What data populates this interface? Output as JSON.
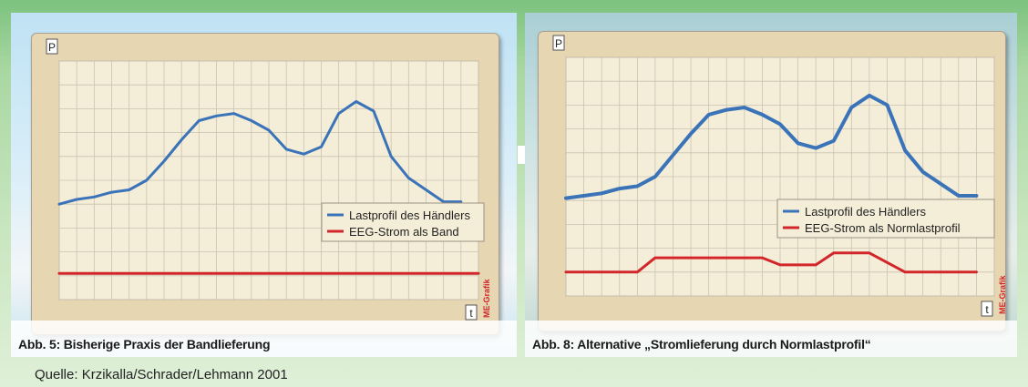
{
  "source_text": "Quelle: Krzikalla/Schrader/Lehmann 2001",
  "colors": {
    "series_blue": "#3b73b9",
    "series_red": "#d2262b",
    "plot_bg": "#f4eed8",
    "frame_bg": "#e6d7b2",
    "grid": "#c9c2b2",
    "credit": "#d2262b"
  },
  "chart_data": [
    {
      "type": "line",
      "caption": "Abb. 5: Bisherige Praxis der Bandlieferung",
      "ylabel": "P",
      "xlabel": "t",
      "credit": "ME-Grafik",
      "grid": true,
      "legend_position": "right",
      "x": [
        0,
        1,
        2,
        3,
        4,
        5,
        6,
        7,
        8,
        9,
        10,
        11,
        12,
        13,
        14,
        15,
        16,
        17,
        18,
        19,
        20,
        21,
        22,
        23,
        24
      ],
      "xlim": [
        0,
        24
      ],
      "ylim": [
        0,
        10
      ],
      "series": [
        {
          "name": "Lastprofil des Händlers",
          "color": "#3b73b9",
          "values": [
            4.0,
            4.2,
            4.3,
            4.5,
            4.6,
            5.0,
            5.8,
            6.7,
            7.5,
            7.7,
            7.8,
            7.5,
            7.1,
            6.3,
            6.1,
            6.4,
            7.8,
            8.3,
            7.9,
            6.0,
            5.1,
            4.6,
            4.1,
            4.1,
            null
          ],
          "x_offset": 0
        },
        {
          "name": "EEG-Strom als Band",
          "color": "#d2262b",
          "values": [
            1.1,
            1.1,
            1.1,
            1.1,
            1.1,
            1.1,
            1.1,
            1.1,
            1.1,
            1.1,
            1.1,
            1.1,
            1.1,
            1.1,
            1.1,
            1.1,
            1.1,
            1.1,
            1.1,
            1.1,
            1.1,
            1.1,
            1.1,
            1.1,
            1.1
          ]
        }
      ]
    },
    {
      "type": "line",
      "caption": "Abb. 8: Alternative „Stromlieferung durch Normlastprofil“",
      "ylabel": "P",
      "xlabel": "t",
      "credit": "ME-Grafik",
      "grid": true,
      "legend_position": "right",
      "x": [
        0,
        1,
        2,
        3,
        4,
        5,
        6,
        7,
        8,
        9,
        10,
        11,
        12,
        13,
        14,
        15,
        16,
        17,
        18,
        19,
        20,
        21,
        22,
        23,
        24
      ],
      "xlim": [
        0,
        24
      ],
      "ylim": [
        0,
        10
      ],
      "series": [
        {
          "name": "Lastprofil des Händlers",
          "color": "#3b73b9",
          "values": [
            4.1,
            4.2,
            4.3,
            4.5,
            4.6,
            5.0,
            5.9,
            6.8,
            7.6,
            7.8,
            7.9,
            7.6,
            7.2,
            6.4,
            6.2,
            6.5,
            7.9,
            8.4,
            8.0,
            6.1,
            5.2,
            4.7,
            4.2,
            4.2,
            null
          ]
        },
        {
          "name": "EEG-Strom als Normlastprofil",
          "color": "#d2262b",
          "values": [
            1.0,
            1.0,
            1.0,
            1.0,
            1.0,
            1.6,
            1.6,
            1.6,
            1.6,
            1.6,
            1.6,
            1.6,
            1.3,
            1.3,
            1.3,
            1.8,
            1.8,
            1.8,
            1.4,
            1.0,
            1.0,
            1.0,
            1.0,
            1.0,
            null
          ]
        }
      ]
    }
  ]
}
